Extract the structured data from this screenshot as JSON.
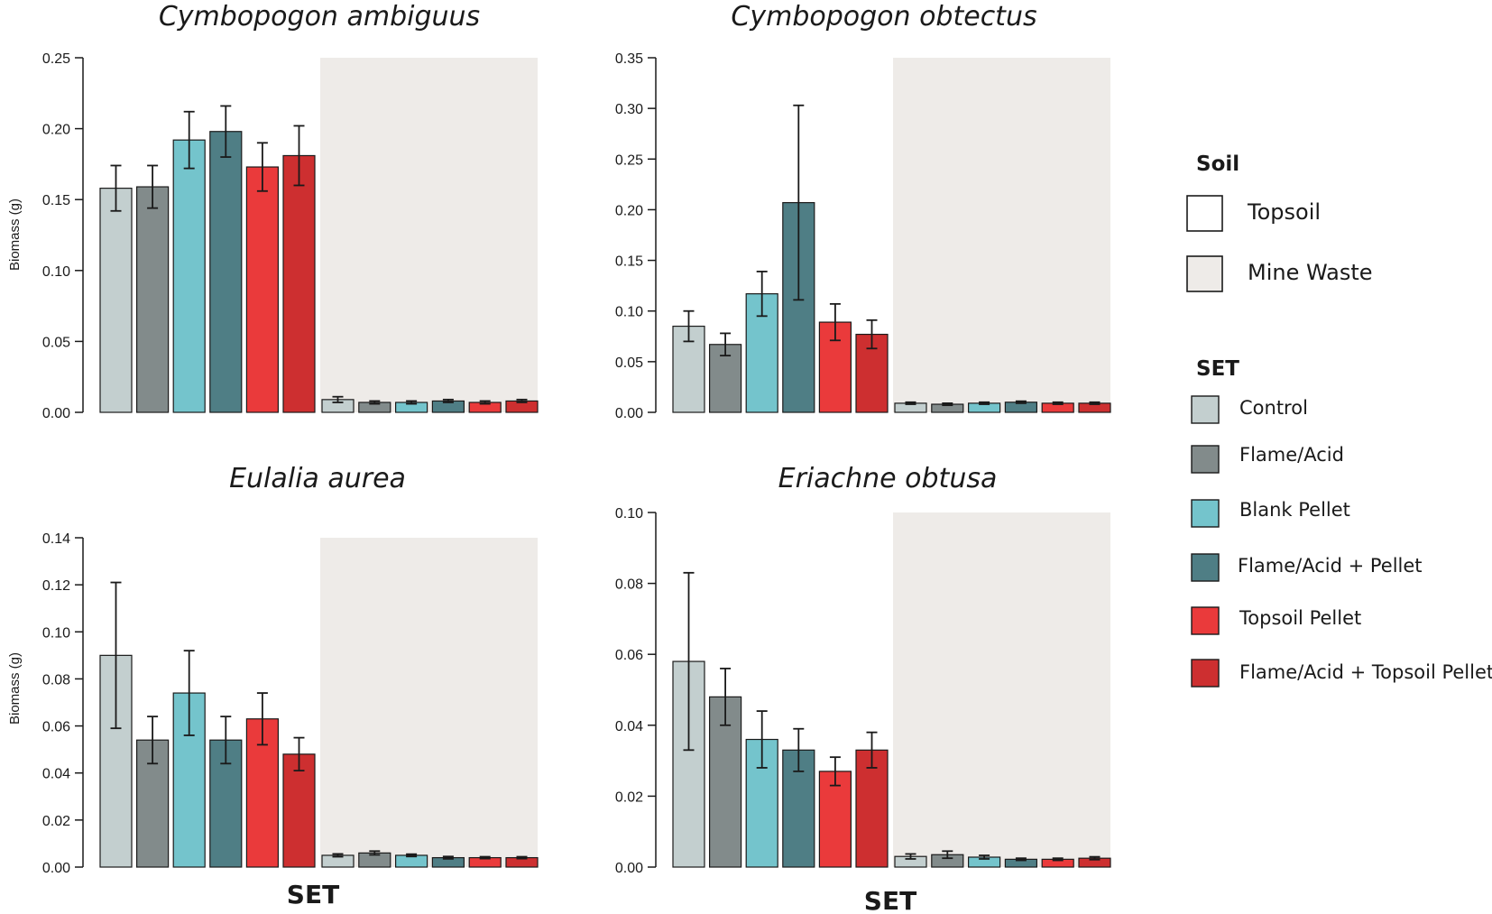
{
  "chart_data": [
    {
      "type": "bar",
      "title": "Cymbopogon ambiguus",
      "xlabel": "",
      "ylabel": "Biomass (g)",
      "ylim": [
        0,
        0.25
      ],
      "yticks": [
        "0.00",
        "0.05",
        "0.10",
        "0.15",
        "0.20",
        "0.25"
      ],
      "soil_groups": [
        "Topsoil",
        "Mine Waste"
      ],
      "categories": [
        "Control",
        "Flame/Acid",
        "Blank Pellet",
        "Flame/Acid + Pellet",
        "Topsoil Pellet",
        "Flame/Acid + Topsoil Pellet"
      ],
      "series": [
        {
          "name": "Topsoil",
          "values": [
            0.158,
            0.159,
            0.192,
            0.198,
            0.173,
            0.181
          ],
          "errors": [
            0.016,
            0.015,
            0.02,
            0.018,
            0.017,
            0.021
          ]
        },
        {
          "name": "Mine Waste",
          "values": [
            0.009,
            0.007,
            0.007,
            0.008,
            0.007,
            0.008
          ],
          "errors": [
            0.002,
            0.001,
            0.001,
            0.001,
            0.001,
            0.001
          ]
        }
      ]
    },
    {
      "type": "bar",
      "title": "Cymbopogon obtectus",
      "xlabel": "",
      "ylabel": "",
      "ylim": [
        0,
        0.35
      ],
      "yticks": [
        "0.00",
        "0.05",
        "0.10",
        "0.15",
        "0.20",
        "0.25",
        "0.30",
        "0.35"
      ],
      "soil_groups": [
        "Topsoil",
        "Mine Waste"
      ],
      "categories": [
        "Control",
        "Flame/Acid",
        "Blank Pellet",
        "Flame/Acid + Pellet",
        "Topsoil Pellet",
        "Flame/Acid + Topsoil Pellet"
      ],
      "series": [
        {
          "name": "Topsoil",
          "values": [
            0.085,
            0.067,
            0.117,
            0.207,
            0.089,
            0.077
          ],
          "errors": [
            0.015,
            0.011,
            0.022,
            0.096,
            0.018,
            0.014
          ]
        },
        {
          "name": "Mine Waste",
          "values": [
            0.009,
            0.008,
            0.009,
            0.01,
            0.009,
            0.009
          ],
          "errors": [
            0.001,
            0.001,
            0.001,
            0.001,
            0.001,
            0.001
          ]
        }
      ]
    },
    {
      "type": "bar",
      "title": "Eulalia aurea",
      "xlabel": "SET",
      "ylabel": "Biomass (g)",
      "ylim": [
        0,
        0.14
      ],
      "yticks": [
        "0.00",
        "0.02",
        "0.04",
        "0.06",
        "0.08",
        "0.10",
        "0.12",
        "0.14"
      ],
      "soil_groups": [
        "Topsoil",
        "Mine Waste"
      ],
      "categories": [
        "Control",
        "Flame/Acid",
        "Blank Pellet",
        "Flame/Acid + Pellet",
        "Topsoil Pellet",
        "Flame/Acid + Topsoil Pellet"
      ],
      "series": [
        {
          "name": "Topsoil",
          "values": [
            0.09,
            0.054,
            0.074,
            0.054,
            0.063,
            0.048
          ],
          "errors": [
            0.031,
            0.01,
            0.018,
            0.01,
            0.011,
            0.007
          ]
        },
        {
          "name": "Mine Waste",
          "values": [
            0.005,
            0.006,
            0.005,
            0.004,
            0.004,
            0.004
          ],
          "errors": [
            0.0006,
            0.0008,
            0.0005,
            0.0005,
            0.0004,
            0.0004
          ]
        }
      ]
    },
    {
      "type": "bar",
      "title": "Eriachne obtusa",
      "xlabel": "SET",
      "ylabel": "",
      "ylim": [
        0,
        0.1
      ],
      "yticks": [
        "0.00",
        "0.02",
        "0.04",
        "0.06",
        "0.08",
        "0.10"
      ],
      "soil_groups": [
        "Topsoil",
        "Mine Waste"
      ],
      "categories": [
        "Control",
        "Flame/Acid",
        "Blank Pellet",
        "Flame/Acid + Pellet",
        "Topsoil Pellet",
        "Flame/Acid + Topsoil Pellet"
      ],
      "series": [
        {
          "name": "Topsoil",
          "values": [
            0.058,
            0.048,
            0.036,
            0.033,
            0.027,
            0.033
          ],
          "errors": [
            0.025,
            0.008,
            0.008,
            0.006,
            0.004,
            0.005
          ]
        },
        {
          "name": "Mine Waste",
          "values": [
            0.003,
            0.0035,
            0.0028,
            0.0022,
            0.0022,
            0.0025
          ],
          "errors": [
            0.0007,
            0.001,
            0.0005,
            0.0003,
            0.0003,
            0.0004
          ]
        }
      ]
    }
  ],
  "legend": {
    "soil_title": "Soil",
    "soil_items": [
      {
        "label": "Topsoil",
        "color": "#ffffff"
      },
      {
        "label": "Mine Waste",
        "color": "#eeebe8"
      }
    ],
    "set_title": "SET",
    "set_items": [
      {
        "label": "Control",
        "color": "#c3cfcf"
      },
      {
        "label": "Flame/Acid",
        "color": "#828b8b"
      },
      {
        "label": "Blank Pellet",
        "color": "#74c4cc"
      },
      {
        "label": "Flame/Acid + Pellet",
        "color": "#4f7e85"
      },
      {
        "label": "Topsoil Pellet",
        "color": "#ea3a3b"
      },
      {
        "label": "Flame/Acid + Topsoil Pellet",
        "color": "#cd2f30"
      }
    ]
  }
}
